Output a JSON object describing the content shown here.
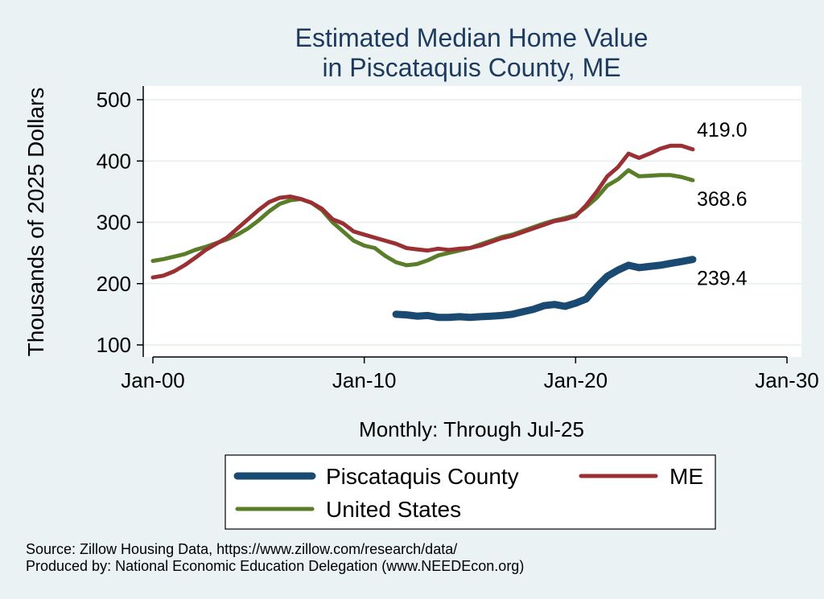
{
  "chart_data": {
    "type": "line",
    "title": [
      "Estimated Median Home Value",
      "in Piscataquis County, ME"
    ],
    "ylabel": "Thousands of 2025 Dollars",
    "xlabel": "Monthly: Through Jul-25",
    "xlim": [
      2000,
      2030
    ],
    "ylim": [
      100,
      500
    ],
    "yticks": [
      100,
      200,
      300,
      400,
      500
    ],
    "xticks": [
      {
        "value": 2000,
        "label": "Jan-00"
      },
      {
        "value": 2010,
        "label": "Jan-10"
      },
      {
        "value": 2020,
        "label": "Jan-20"
      },
      {
        "value": 2030,
        "label": "Jan-30"
      }
    ],
    "grid": true,
    "legend_position": "bottom",
    "series": [
      {
        "name": "Piscataquis County",
        "color": "#1a4a72",
        "end_label": "239.4",
        "points": [
          [
            2011.5,
            150
          ],
          [
            2012.0,
            149
          ],
          [
            2012.5,
            147
          ],
          [
            2013.0,
            148
          ],
          [
            2013.5,
            145
          ],
          [
            2014.0,
            145
          ],
          [
            2014.5,
            146
          ],
          [
            2015.0,
            145
          ],
          [
            2015.5,
            146
          ],
          [
            2016.0,
            147
          ],
          [
            2016.5,
            148
          ],
          [
            2017.0,
            150
          ],
          [
            2017.5,
            154
          ],
          [
            2018.0,
            158
          ],
          [
            2018.5,
            164
          ],
          [
            2019.0,
            166
          ],
          [
            2019.5,
            163
          ],
          [
            2020.0,
            168
          ],
          [
            2020.5,
            175
          ],
          [
            2021.0,
            195
          ],
          [
            2021.5,
            212
          ],
          [
            2022.0,
            222
          ],
          [
            2022.5,
            230
          ],
          [
            2023.0,
            226
          ],
          [
            2023.5,
            228
          ],
          [
            2024.0,
            230
          ],
          [
            2024.5,
            233
          ],
          [
            2025.0,
            236
          ],
          [
            2025.54,
            239.4
          ]
        ]
      },
      {
        "name": "ME",
        "color": "#9a2f34",
        "end_label": "419.0",
        "points": [
          [
            2000.0,
            210
          ],
          [
            2000.5,
            213
          ],
          [
            2001.0,
            220
          ],
          [
            2001.5,
            230
          ],
          [
            2002.0,
            242
          ],
          [
            2002.5,
            255
          ],
          [
            2003.0,
            265
          ],
          [
            2003.5,
            275
          ],
          [
            2004.0,
            290
          ],
          [
            2004.5,
            305
          ],
          [
            2005.0,
            320
          ],
          [
            2005.5,
            333
          ],
          [
            2006.0,
            340
          ],
          [
            2006.5,
            342
          ],
          [
            2007.0,
            338
          ],
          [
            2007.5,
            332
          ],
          [
            2008.0,
            322
          ],
          [
            2008.5,
            305
          ],
          [
            2009.0,
            298
          ],
          [
            2009.5,
            285
          ],
          [
            2010.0,
            280
          ],
          [
            2010.5,
            275
          ],
          [
            2011.0,
            270
          ],
          [
            2011.5,
            265
          ],
          [
            2012.0,
            258
          ],
          [
            2012.5,
            256
          ],
          [
            2013.0,
            254
          ],
          [
            2013.5,
            257
          ],
          [
            2014.0,
            255
          ],
          [
            2014.5,
            257
          ],
          [
            2015.0,
            258
          ],
          [
            2015.5,
            262
          ],
          [
            2016.0,
            268
          ],
          [
            2016.5,
            274
          ],
          [
            2017.0,
            278
          ],
          [
            2017.5,
            284
          ],
          [
            2018.0,
            290
          ],
          [
            2018.5,
            296
          ],
          [
            2019.0,
            302
          ],
          [
            2019.5,
            305
          ],
          [
            2020.0,
            310
          ],
          [
            2020.5,
            328
          ],
          [
            2021.0,
            350
          ],
          [
            2021.5,
            375
          ],
          [
            2022.0,
            390
          ],
          [
            2022.5,
            412
          ],
          [
            2023.0,
            405
          ],
          [
            2023.5,
            412
          ],
          [
            2024.0,
            420
          ],
          [
            2024.5,
            425
          ],
          [
            2025.0,
            425
          ],
          [
            2025.54,
            419.0
          ]
        ]
      },
      {
        "name": "United States",
        "color": "#5a7d2a",
        "end_label": "368.6",
        "points": [
          [
            2000.0,
            237
          ],
          [
            2000.5,
            240
          ],
          [
            2001.0,
            244
          ],
          [
            2001.5,
            248
          ],
          [
            2002.0,
            255
          ],
          [
            2002.5,
            260
          ],
          [
            2003.0,
            266
          ],
          [
            2003.5,
            272
          ],
          [
            2004.0,
            280
          ],
          [
            2004.5,
            290
          ],
          [
            2005.0,
            303
          ],
          [
            2005.5,
            318
          ],
          [
            2006.0,
            330
          ],
          [
            2006.5,
            336
          ],
          [
            2007.0,
            338
          ],
          [
            2007.5,
            332
          ],
          [
            2008.0,
            320
          ],
          [
            2008.5,
            300
          ],
          [
            2009.0,
            285
          ],
          [
            2009.5,
            270
          ],
          [
            2010.0,
            262
          ],
          [
            2010.5,
            258
          ],
          [
            2011.0,
            245
          ],
          [
            2011.5,
            235
          ],
          [
            2012.0,
            230
          ],
          [
            2012.5,
            232
          ],
          [
            2013.0,
            238
          ],
          [
            2013.5,
            246
          ],
          [
            2014.0,
            250
          ],
          [
            2014.5,
            254
          ],
          [
            2015.0,
            258
          ],
          [
            2015.5,
            264
          ],
          [
            2016.0,
            270
          ],
          [
            2016.5,
            276
          ],
          [
            2017.0,
            280
          ],
          [
            2017.5,
            286
          ],
          [
            2018.0,
            292
          ],
          [
            2018.5,
            298
          ],
          [
            2019.0,
            303
          ],
          [
            2019.5,
            307
          ],
          [
            2020.0,
            312
          ],
          [
            2020.5,
            325
          ],
          [
            2021.0,
            340
          ],
          [
            2021.5,
            360
          ],
          [
            2022.0,
            370
          ],
          [
            2022.5,
            385
          ],
          [
            2023.0,
            375
          ],
          [
            2023.5,
            376
          ],
          [
            2024.0,
            377
          ],
          [
            2024.5,
            377
          ],
          [
            2025.0,
            374
          ],
          [
            2025.54,
            368.6
          ]
        ]
      }
    ]
  },
  "legend_items": [
    {
      "label": "Piscataquis County",
      "color": "#1a4a72"
    },
    {
      "label": "ME",
      "color": "#9a2f34"
    },
    {
      "label": "United States",
      "color": "#5a7d2a"
    }
  ],
  "source_line": "Source: Zillow Housing Data, https://www.zillow.com/research/data/",
  "produced_line": "Produced by: National Economic Education Delegation (www.NEEDEcon.org)"
}
